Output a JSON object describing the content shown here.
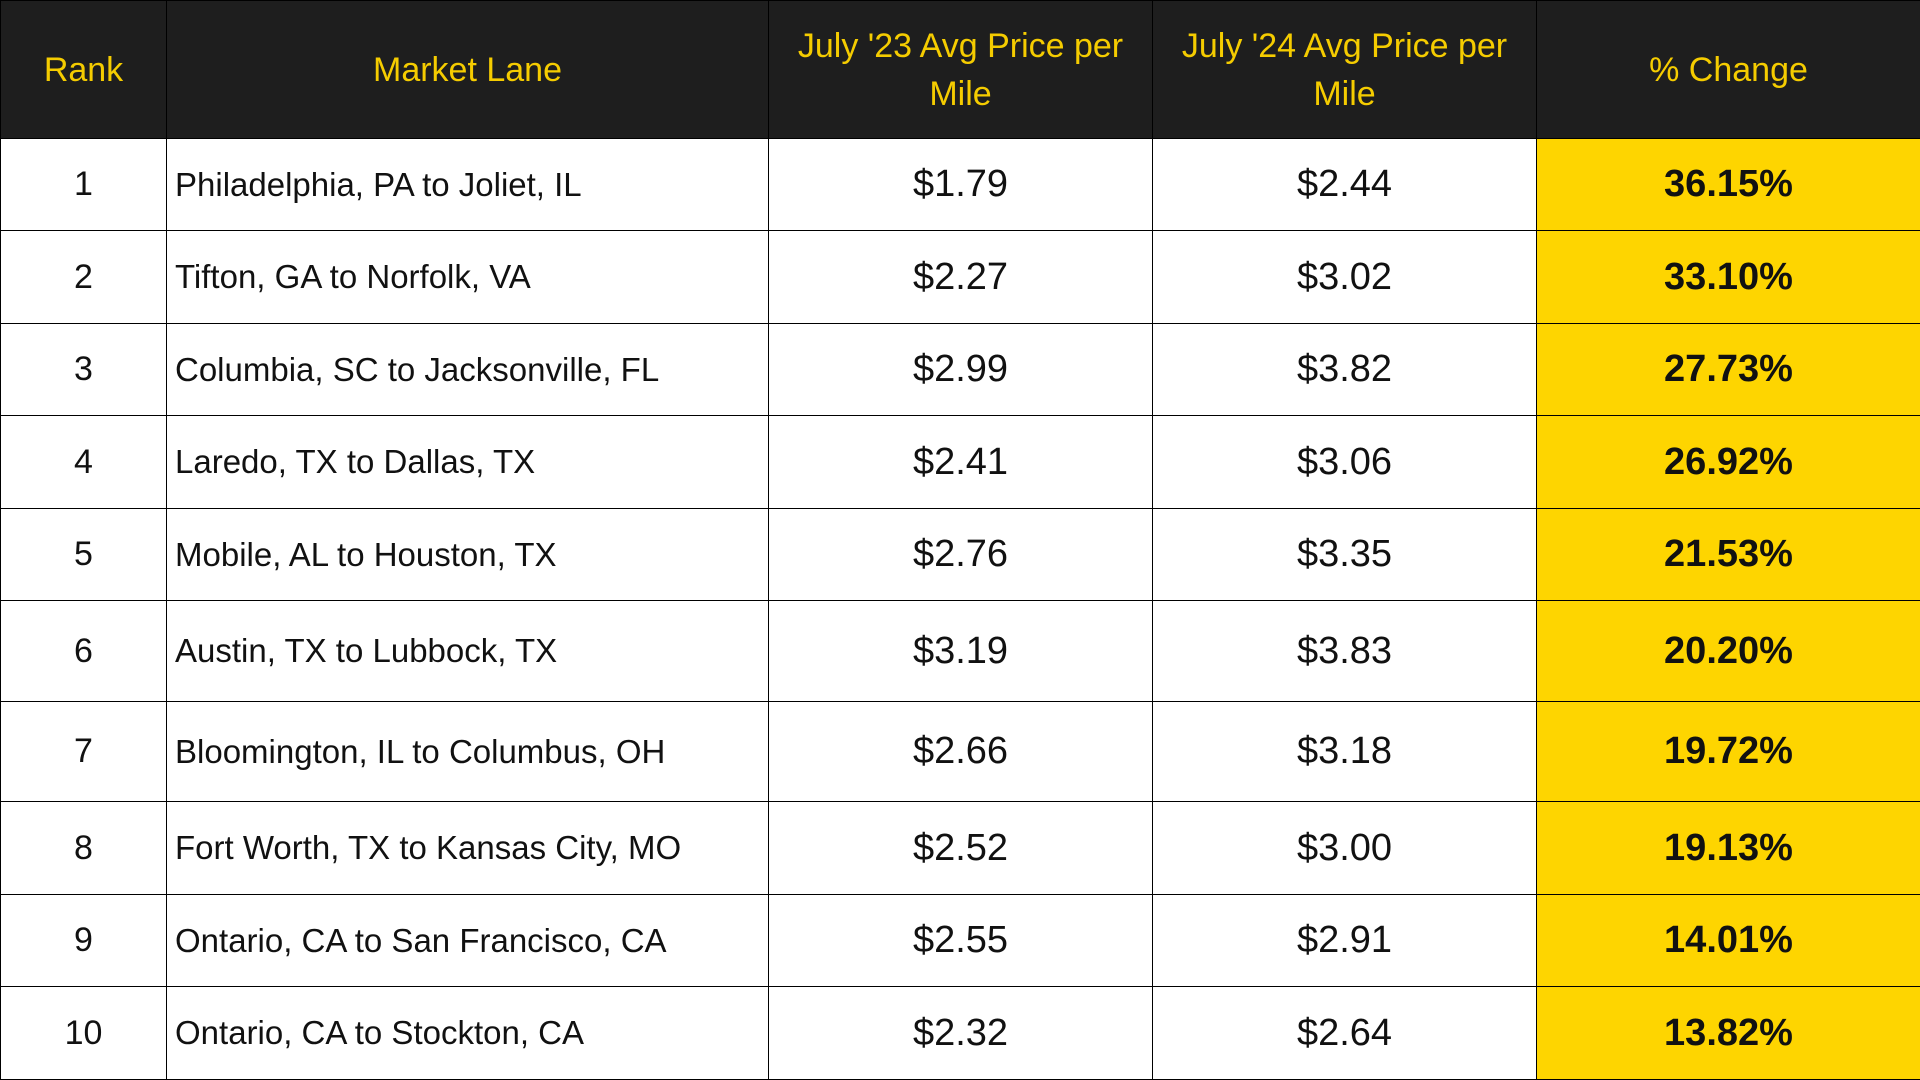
{
  "colors": {
    "header_bg": "#1e1e1e",
    "header_text": "#f5cc00",
    "change_bg": "#fed500",
    "border": "#000000"
  },
  "table": {
    "headers": {
      "rank": "Rank",
      "lane": "Market Lane",
      "price_23": "July '23 Avg Price per Mile",
      "price_24": "July '24 Avg Price per Mile",
      "change": "% Change"
    },
    "rows": [
      {
        "rank": "1",
        "lane": "Philadelphia, PA to Joliet, IL",
        "price_23": "$1.79",
        "price_24": "$2.44",
        "change": "36.15%"
      },
      {
        "rank": "2",
        "lane": "Tifton, GA to Norfolk, VA",
        "price_23": "$2.27",
        "price_24": "$3.02",
        "change": "33.10%"
      },
      {
        "rank": "3",
        "lane": "Columbia, SC to Jacksonville, FL",
        "price_23": "$2.99",
        "price_24": "$3.82",
        "change": "27.73%"
      },
      {
        "rank": "4",
        "lane": "Laredo, TX to Dallas, TX",
        "price_23": "$2.41",
        "price_24": "$3.06",
        "change": "26.92%"
      },
      {
        "rank": "5",
        "lane": "Mobile, AL to Houston, TX",
        "price_23": "$2.76",
        "price_24": "$3.35",
        "change": "21.53%"
      },
      {
        "rank": "6",
        "lane": "Austin, TX to Lubbock, TX",
        "price_23": "$3.19",
        "price_24": "$3.83",
        "change": "20.20%"
      },
      {
        "rank": "7",
        "lane": "Bloomington, IL to Columbus, OH",
        "price_23": "$2.66",
        "price_24": "$3.18",
        "change": "19.72%"
      },
      {
        "rank": "8",
        "lane": "Fort Worth, TX to Kansas City, MO",
        "price_23": "$2.52",
        "price_24": "$3.00",
        "change": "19.13%"
      },
      {
        "rank": "9",
        "lane": "Ontario, CA to San Francisco, CA",
        "price_23": "$2.55",
        "price_24": "$2.91",
        "change": "14.01%"
      },
      {
        "rank": "10",
        "lane": "Ontario, CA to Stockton, CA",
        "price_23": "$2.32",
        "price_24": "$2.64",
        "change": "13.82%"
      }
    ]
  }
}
